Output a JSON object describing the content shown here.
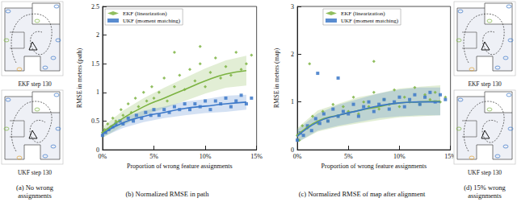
{
  "chart_data": [
    {
      "type": "scatter",
      "caption": "(b) Normalized RMSE in path",
      "x_label": "Proportion of wrong feature assignments",
      "y_label": "RMSE in meters (path)",
      "xlim": [
        0,
        15
      ],
      "xticks": [
        {
          "value": 0,
          "label": "0%"
        },
        {
          "value": 5,
          "label": "5%"
        },
        {
          "value": 10,
          "label": "10%"
        },
        {
          "value": 15,
          "label": "15%"
        }
      ],
      "ylim": [
        0,
        2.5
      ],
      "yticks": [
        0,
        0.5,
        1,
        1.5,
        2,
        2.5
      ],
      "grid": false,
      "legend": "upper left",
      "series": [
        {
          "name": "EKF (linearization)",
          "color": "#7cb342",
          "marker": "diamond",
          "line_style": "solid",
          "points": {
            "x": [
              0,
              0.2,
              0.5,
              0.8,
              1,
              1.3,
              1.8,
              2,
              2.5,
              2.8,
              3.2,
              3.5,
              4,
              4.3,
              4.8,
              5,
              5.5,
              6,
              6.3,
              7,
              7.5,
              8,
              8.5,
              9,
              9.5,
              10,
              10.5,
              11,
              11.5,
              12,
              12.5,
              13,
              13.5,
              14,
              14.5,
              7,
              9.5
            ],
            "y": [
              0.3,
              0.35,
              0.45,
              0.4,
              0.55,
              0.5,
              0.7,
              0.6,
              0.8,
              0.65,
              0.9,
              0.75,
              1.0,
              0.85,
              1.1,
              0.9,
              1.0,
              1.25,
              0.85,
              1.1,
              1.3,
              1.05,
              1.4,
              1.2,
              1.5,
              1.1,
              1.35,
              1.6,
              1.25,
              1.45,
              1.3,
              1.7,
              1.4,
              1.5,
              1.65,
              1.7,
              1.8
            ]
          },
          "mean": {
            "x": [
              0,
              2,
              4,
              6,
              8,
              10,
              12,
              14
            ],
            "y": [
              0.3,
              0.55,
              0.75,
              0.9,
              1.05,
              1.2,
              1.32,
              1.38
            ]
          },
          "band": {
            "x": [
              0,
              2,
              4,
              6,
              8,
              10,
              12,
              14
            ],
            "lower": [
              0.2,
              0.42,
              0.6,
              0.72,
              0.85,
              0.98,
              1.08,
              1.12
            ],
            "upper": [
              0.4,
              0.68,
              0.9,
              1.08,
              1.25,
              1.42,
              1.56,
              1.64
            ]
          }
        },
        {
          "name": "UKF (moment matching)",
          "color": "#3c78c8",
          "marker": "square",
          "line_style": "solid",
          "points": {
            "x": [
              0,
              0.3,
              0.6,
              1,
              1.3,
              1.7,
              2,
              2.5,
              3,
              3.3,
              3.8,
              4.2,
              4.7,
              5,
              5.5,
              6,
              6.5,
              7,
              7.5,
              8,
              8.5,
              9,
              9.5,
              10,
              10.5,
              11,
              11.5,
              12,
              12.5,
              13,
              13.5,
              14,
              14.5
            ],
            "y": [
              0.25,
              0.3,
              0.35,
              0.4,
              0.45,
              0.5,
              0.45,
              0.55,
              0.5,
              0.6,
              0.55,
              0.65,
              0.6,
              0.7,
              0.6,
              0.7,
              0.65,
              0.75,
              0.7,
              0.8,
              0.7,
              0.8,
              0.75,
              0.85,
              0.7,
              0.85,
              0.8,
              0.9,
              0.75,
              0.85,
              0.95,
              0.8,
              0.9
            ]
          },
          "mean": {
            "x": [
              0,
              2,
              4,
              6,
              8,
              10,
              12,
              14
            ],
            "y": [
              0.28,
              0.47,
              0.58,
              0.65,
              0.72,
              0.76,
              0.8,
              0.83
            ]
          },
          "band": {
            "x": [
              0,
              2,
              4,
              6,
              8,
              10,
              12,
              14
            ],
            "lower": [
              0.22,
              0.38,
              0.48,
              0.55,
              0.6,
              0.64,
              0.66,
              0.7
            ],
            "upper": [
              0.34,
              0.56,
              0.68,
              0.75,
              0.84,
              0.88,
              0.94,
              0.96
            ]
          }
        }
      ]
    },
    {
      "type": "scatter",
      "caption": "(c) Normalized RMSE of map after alignment",
      "x_label": "Proportion of wrong feature assignments",
      "y_label": "RMSE in meters (map)",
      "xlim": [
        0,
        15
      ],
      "xticks": [
        {
          "value": 0,
          "label": "0%"
        },
        {
          "value": 5,
          "label": "5%"
        },
        {
          "value": 10,
          "label": "10%"
        },
        {
          "value": 15,
          "label": "15%"
        }
      ],
      "ylim": [
        0,
        3
      ],
      "yticks": [
        0,
        1,
        2,
        3
      ],
      "grid": false,
      "legend": "upper center",
      "series": [
        {
          "name": "EKF (linearization)",
          "color": "#7cb342",
          "marker": "diamond",
          "line_style": "solid",
          "points": {
            "x": [
              0,
              0.2,
              0.5,
              1,
              1.5,
              2,
              2.5,
              3,
              3.5,
              4,
              4.5,
              5,
              5.5,
              6,
              6.5,
              7,
              7.5,
              8,
              8.5,
              9,
              9.5,
              10,
              10.5,
              11,
              11.5,
              12,
              12.5,
              13,
              13.5,
              14,
              14.5,
              1.2,
              7.5
            ],
            "y": [
              0.3,
              0.2,
              0.5,
              0.45,
              0.7,
              0.55,
              0.8,
              0.6,
              0.95,
              0.7,
              0.9,
              0.8,
              1.1,
              0.75,
              1.0,
              0.9,
              1.2,
              0.85,
              1.05,
              0.95,
              1.25,
              0.9,
              1.1,
              1.0,
              1.3,
              0.95,
              1.15,
              1.05,
              1.2,
              1.0,
              1.1,
              1.8,
              1.85
            ]
          },
          "mean": {
            "x": [
              0,
              2,
              4,
              6,
              8,
              10,
              12,
              14
            ],
            "y": [
              0.3,
              0.6,
              0.72,
              0.82,
              0.9,
              0.98,
              1.0,
              1.02
            ]
          },
          "band": {
            "x": [
              0,
              2,
              4,
              6,
              8,
              10,
              12,
              14
            ],
            "lower": [
              0.15,
              0.38,
              0.48,
              0.55,
              0.62,
              0.68,
              0.7,
              0.72
            ],
            "upper": [
              0.45,
              0.82,
              0.96,
              1.1,
              1.18,
              1.28,
              1.32,
              1.35
            ]
          }
        },
        {
          "name": "UKF (moment matching)",
          "color": "#3c78c8",
          "marker": "square",
          "line_style": "solid",
          "points": {
            "x": [
              0,
              0.3,
              0.6,
              1,
              1.4,
              1.8,
              2.2,
              2.6,
              3,
              3.5,
              4,
              4.5,
              5,
              5.5,
              6,
              6.5,
              7,
              7.5,
              8,
              8.5,
              9,
              9.5,
              10,
              10.5,
              11,
              11.5,
              12,
              12.5,
              13,
              13.5,
              14,
              14.5,
              2,
              4
            ],
            "y": [
              0.2,
              0.35,
              0.3,
              0.5,
              0.4,
              0.65,
              0.55,
              0.75,
              0.6,
              0.85,
              0.7,
              0.8,
              0.75,
              0.95,
              0.7,
              0.9,
              1.0,
              0.8,
              0.95,
              1.05,
              0.85,
              1.0,
              1.1,
              0.9,
              1.05,
              1.15,
              0.95,
              1.1,
              1.2,
              1.0,
              1.15,
              1.05,
              1.6,
              1.5
            ]
          },
          "mean": {
            "x": [
              0,
              2,
              4,
              6,
              8,
              10,
              12,
              14
            ],
            "y": [
              0.28,
              0.58,
              0.72,
              0.82,
              0.92,
              0.98,
              1.0,
              1.0
            ]
          },
          "band": {
            "x": [
              0,
              2,
              4,
              6,
              8,
              10,
              12,
              14
            ],
            "lower": [
              0.15,
              0.4,
              0.5,
              0.58,
              0.66,
              0.7,
              0.72,
              0.72
            ],
            "upper": [
              0.42,
              0.76,
              0.94,
              1.06,
              1.18,
              1.26,
              1.3,
              1.3
            ]
          }
        }
      ]
    }
  ],
  "panels": [
    {
      "caption": "(a) No wrong assignments",
      "maps": [
        "EKF step 130",
        "UKF step 130"
      ]
    },
    {
      "caption": "(d) 15% wrong assignments",
      "maps": [
        "EKF step 130",
        "UKF step 130"
      ]
    }
  ]
}
